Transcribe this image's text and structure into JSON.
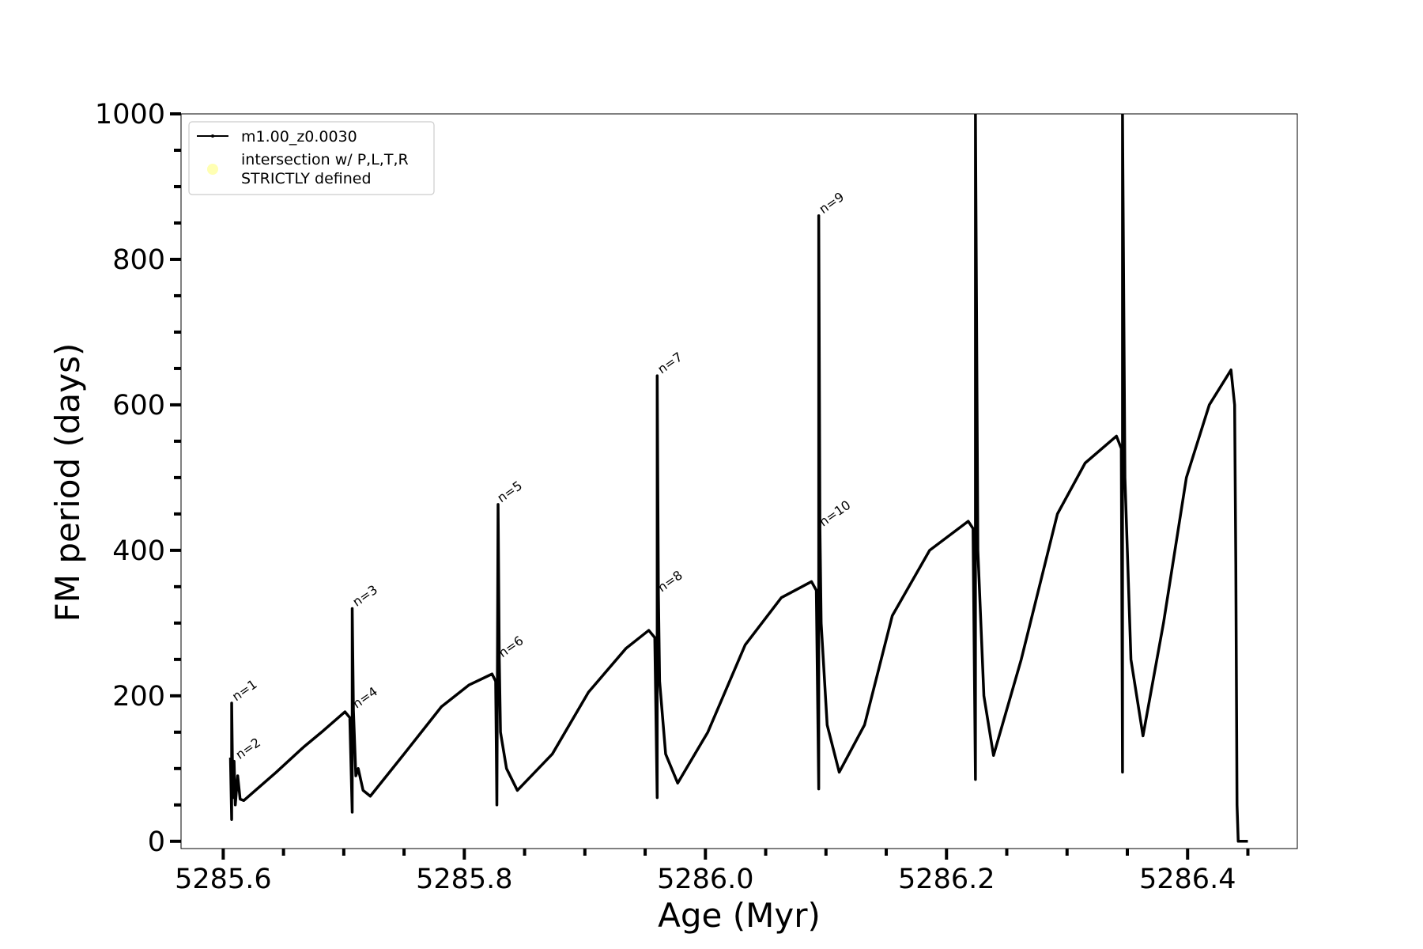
{
  "chart_data": {
    "type": "line",
    "xlabel": "Age (Myr)",
    "ylabel": "FM period (days)",
    "xlim": [
      5285.565,
      5286.491
    ],
    "ylim": [
      -10,
      1000
    ],
    "xticks": [
      5285.6,
      5285.8,
      {
        "value": 5286,
        "label": "5286.0"
      },
      5286.2,
      5286.4
    ],
    "yticks": [
      0,
      200,
      400,
      600,
      800,
      1000
    ],
    "xticks_minor": [
      5285.65,
      5285.7,
      5285.75,
      5285.85,
      5285.9,
      5285.95,
      5286.05,
      5286.1,
      5286.15,
      5286.25,
      5286.3,
      5286.35,
      5286.45
    ],
    "yticks_minor": [
      50,
      100,
      150,
      250,
      300,
      350,
      450,
      500,
      550,
      650,
      700,
      750,
      850,
      900,
      950
    ],
    "legend": "upper left",
    "series": [
      {
        "name": "m1.00_z0.0030",
        "color": "#000000",
        "x": [
          5285.606,
          5285.607,
          5285.607,
          5285.608,
          5285.609,
          5285.61,
          5285.612,
          5285.614,
          5285.617,
          5285.644,
          5285.667,
          5285.683,
          5285.701,
          5285.705,
          5285.707,
          5285.707,
          5285.708,
          5285.71,
          5285.712,
          5285.716,
          5285.722,
          5285.75,
          5285.781,
          5285.804,
          5285.823,
          5285.826,
          5285.827,
          5285.828,
          5285.829,
          5285.83,
          5285.835,
          5285.844,
          5285.873,
          5285.903,
          5285.934,
          5285.953,
          5285.958,
          5285.96,
          5285.96,
          5285.961,
          5285.962,
          5285.967,
          5285.977,
          5286.002,
          5286.033,
          5286.063,
          5286.088,
          5286.092,
          5286.094,
          5286.094,
          5286.095,
          5286.096,
          5286.101,
          5286.111,
          5286.132,
          5286.155,
          5286.186,
          5286.218,
          5286.222,
          5286.224,
          5286.224,
          5286.226,
          5286.231,
          5286.239,
          5286.262,
          5286.292,
          5286.315,
          5286.341,
          5286.345,
          5286.346,
          5286.346,
          5286.348,
          5286.353,
          5286.363,
          5286.38,
          5286.399,
          5286.418,
          5286.436,
          5286.439,
          5286.44,
          5286.441,
          5286.442,
          5286.45
        ],
        "values": [
          115,
          30,
          190,
          60,
          110,
          50,
          90,
          58,
          56,
          95,
          130,
          152,
          178,
          170,
          40,
          320,
          180,
          90,
          100,
          70,
          62,
          120,
          185,
          215,
          230,
          220,
          50,
          463,
          250,
          150,
          100,
          70,
          120,
          205,
          265,
          290,
          280,
          60,
          640,
          340,
          220,
          120,
          80,
          150,
          270,
          335,
          357,
          345,
          72,
          860,
          430,
          300,
          160,
          95,
          160,
          310,
          400,
          440,
          430,
          85,
          1000,
          400,
          200,
          118,
          250,
          450,
          520,
          557,
          540,
          95,
          1000,
          500,
          250,
          145,
          300,
          500,
          600,
          648,
          600,
          380,
          50,
          0,
          0
        ]
      },
      {
        "name": "intersection w/ P,L,T,R\nSTRICTLY defined",
        "color": "#ffffb3",
        "marker": "circle",
        "x": [],
        "values": []
      }
    ],
    "annotations": [
      {
        "text": "n=1",
        "x": 5285.608,
        "y": 190
      },
      {
        "text": "n=2",
        "x": 5285.611,
        "y": 110
      },
      {
        "text": "n=3",
        "x": 5285.708,
        "y": 320
      },
      {
        "text": "n=4",
        "x": 5285.708,
        "y": 180
      },
      {
        "text": "n=5",
        "x": 5285.828,
        "y": 463
      },
      {
        "text": "n=6",
        "x": 5285.829,
        "y": 250
      },
      {
        "text": "n=7",
        "x": 5285.961,
        "y": 640
      },
      {
        "text": "n=8",
        "x": 5285.961,
        "y": 340
      },
      {
        "text": "n=9",
        "x": 5286.095,
        "y": 860
      },
      {
        "text": "n=10",
        "x": 5286.095,
        "y": 430
      }
    ]
  }
}
